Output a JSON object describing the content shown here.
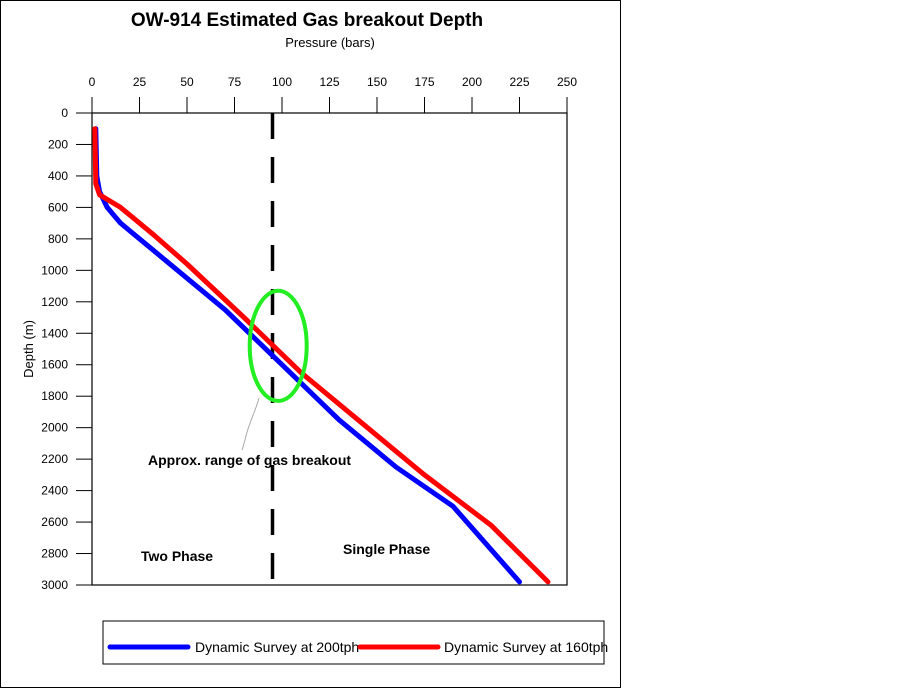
{
  "chart_data": {
    "type": "line",
    "title": "OW-914 Estimated Gas breakout Depth",
    "xlabel": "Pressure (bars)",
    "ylabel": "Depth (m)",
    "xlim": [
      0,
      250
    ],
    "ylim": [
      0,
      3000
    ],
    "y_inverted": true,
    "x_axis_position": "top",
    "grid": false,
    "x_ticks": [
      "0",
      "25",
      "50",
      "75",
      "100",
      "125",
      "150",
      "175",
      "200",
      "225",
      "250"
    ],
    "y_ticks": [
      "0",
      "200",
      "400",
      "600",
      "800",
      "1000",
      "1200",
      "1400",
      "1600",
      "1800",
      "2000",
      "2200",
      "2400",
      "2600",
      "2800",
      "3000"
    ],
    "series": [
      {
        "name": "Dynamic Survey at 200tph",
        "color": "#0000ff",
        "points": [
          [
            2,
            100
          ],
          [
            2.5,
            400
          ],
          [
            4,
            500
          ],
          [
            8,
            600
          ],
          [
            15,
            700
          ],
          [
            30,
            850
          ],
          [
            50,
            1050
          ],
          [
            70,
            1250
          ],
          [
            100,
            1600
          ],
          [
            130,
            1950
          ],
          [
            160,
            2250
          ],
          [
            190,
            2500
          ],
          [
            225,
            2980
          ]
        ]
      },
      {
        "name": "Dynamic Survey at 160tph",
        "color": "#ff0000",
        "points": [
          [
            1.5,
            100
          ],
          [
            2,
            450
          ],
          [
            4,
            520
          ],
          [
            15,
            600
          ],
          [
            33,
            780
          ],
          [
            50,
            960
          ],
          [
            80,
            1300
          ],
          [
            110,
            1650
          ],
          [
            145,
            2000
          ],
          [
            175,
            2300
          ],
          [
            210,
            2620
          ],
          [
            240,
            2980
          ]
        ]
      }
    ],
    "reference_line": {
      "x": 95,
      "style": "dashed",
      "color": "#000000"
    },
    "highlight_ellipse": {
      "cx": 98,
      "cy": 1480,
      "rx": 15,
      "ry": 350,
      "color": "#22ee22"
    },
    "annotations": {
      "gas_breakout": "Approx. range of gas breakout",
      "two_phase": "Two Phase",
      "single_phase": "Single Phase"
    },
    "legend": {
      "position": "bottom",
      "entries": [
        {
          "label": "Dynamic Survey at 200tph",
          "color": "#0000ff"
        },
        {
          "label": "Dynamic Survey at 160tph",
          "color": "#ff0000"
        }
      ]
    }
  }
}
